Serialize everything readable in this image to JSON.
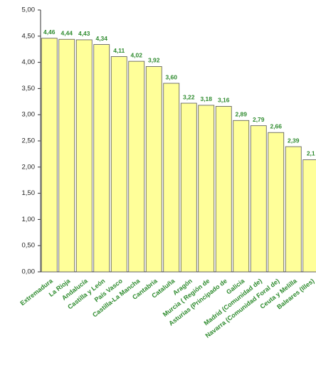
{
  "chart_data": {
    "type": "bar",
    "categories": [
      "Extremadura",
      "La Rioja",
      "Andalucía",
      "Castilla y León",
      "País Vasco",
      "Castilla-La Mancha",
      "Cantabria",
      "Cataluña",
      "Aragón",
      "Murcia ( Región de",
      "Asturias (Principado de",
      "Galicia",
      "Madrid (Comunidad de)",
      "Navarra (Comunidad Foral de)",
      "Ceuta y Melilla",
      "Baleares (Illes)"
    ],
    "values": [
      4.46,
      4.44,
      4.43,
      4.34,
      4.11,
      4.02,
      3.92,
      3.6,
      3.22,
      3.18,
      3.16,
      2.89,
      2.79,
      2.66,
      2.39,
      2.14
    ],
    "value_labels": [
      "4,46",
      "4,44",
      "4,43",
      "4,34",
      "4,11",
      "4,02",
      "3,92",
      "3,60",
      "3,22",
      "3,18",
      "3,16",
      "2,89",
      "2,79",
      "2,66",
      "2,39",
      "2,1"
    ],
    "color": "#ffff99",
    "ylim": [
      0,
      5
    ],
    "yticks": [
      {
        "value": 0,
        "label": "0,00"
      },
      {
        "value": 0.5,
        "label": "0,50"
      },
      {
        "value": 1,
        "label": "1,00"
      },
      {
        "value": 1.5,
        "label": "1,50"
      },
      {
        "value": 2,
        "label": "2,00"
      },
      {
        "value": 2.5,
        "label": "2,50"
      },
      {
        "value": 3,
        "label": "3,00"
      },
      {
        "value": 3.5,
        "label": "3,50"
      },
      {
        "value": 4,
        "label": "4,00"
      },
      {
        "value": 4.5,
        "label": "4,50"
      },
      {
        "value": 5,
        "label": "5,00"
      }
    ],
    "grid": false
  }
}
